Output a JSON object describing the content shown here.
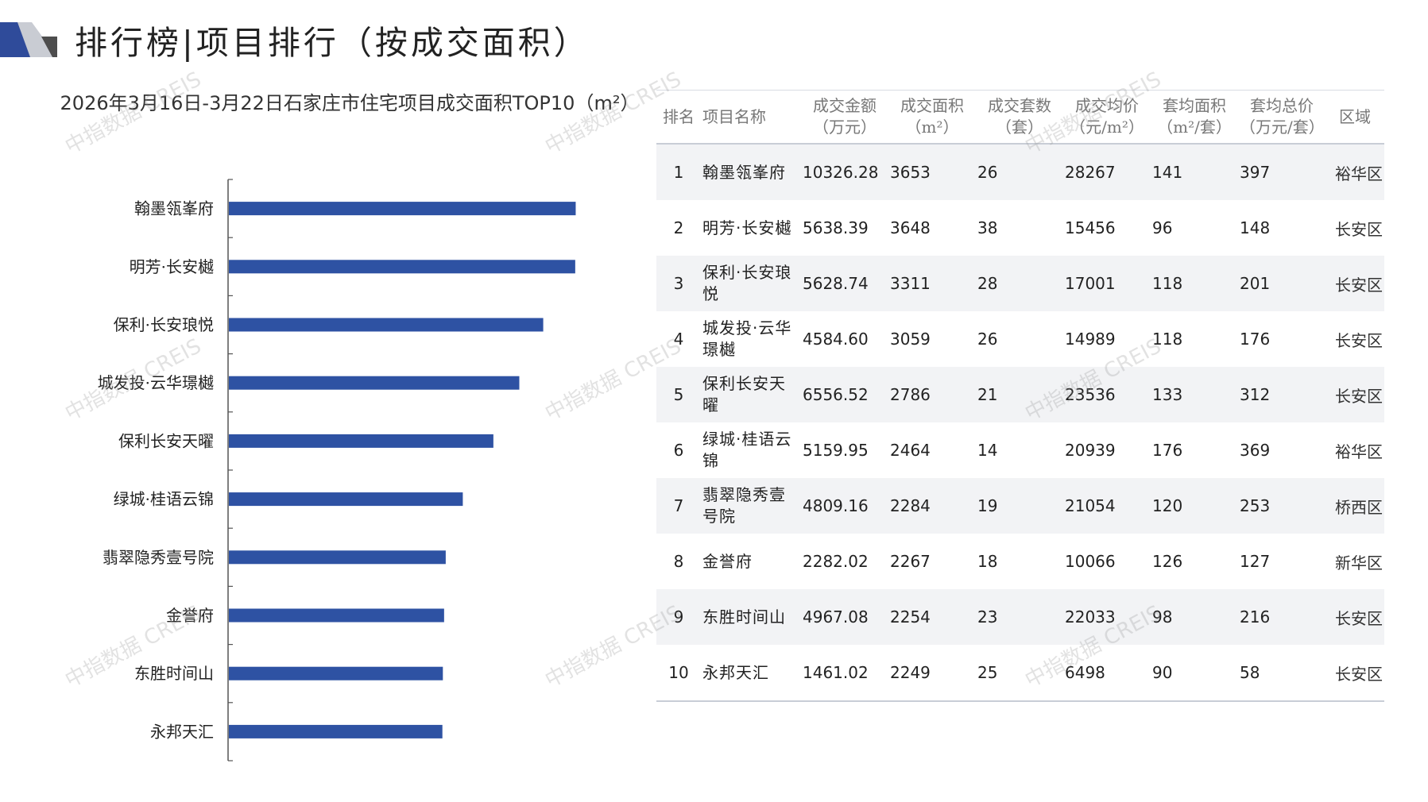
{
  "page": {
    "title": "排行榜|项目排行（按成交面积）",
    "watermark": "中指数据 CREIS",
    "colors": {
      "bar": "#2e52a3",
      "deco_dark": "#2f4b9a",
      "deco_light": "#c9ccd3",
      "axis": "#555555",
      "row_band": "#f2f3f5"
    }
  },
  "chart_data": {
    "type": "bar",
    "orientation": "horizontal",
    "title": "2026年3月16日-3月22日石家庄市住宅项目成交面积TOP10（m²）",
    "categories": [
      "翰墨瓴峯府",
      "明芳·长安樾",
      "保利·长安琅悦",
      "城发投·云华璟樾",
      "保利长安天曜",
      "绿城·桂语云锦",
      "翡翠隐秀壹号院",
      "金誉府",
      "东胜时间山",
      "永邦天汇"
    ],
    "values": [
      3653,
      3648,
      3311,
      3059,
      2786,
      2464,
      2284,
      2267,
      2254,
      2249
    ],
    "xlim": [
      0,
      3850
    ],
    "grid": false,
    "legend": "none",
    "color": "#2e52a3"
  },
  "table": {
    "headers": [
      {
        "line1": "排名",
        "line2": ""
      },
      {
        "line1": "项目名称",
        "line2": ""
      },
      {
        "line1": "成交金额",
        "line2": "（万元）"
      },
      {
        "line1": "成交面积",
        "line2": "（m²）"
      },
      {
        "line1": "成交套数",
        "line2": "（套）"
      },
      {
        "line1": "成交均价",
        "line2": "（元/m²）"
      },
      {
        "line1": "套均面积",
        "line2": "（m²/套）"
      },
      {
        "line1": "套均总价",
        "line2": "（万元/套）"
      },
      {
        "line1": "区域",
        "line2": ""
      }
    ],
    "rows": [
      {
        "rank": "1",
        "name": "翰墨瓴峯府",
        "amount": "10326.28",
        "area": "3653",
        "units": "26",
        "avg_price": "28267",
        "avg_area": "141",
        "avg_total": "397",
        "district": "裕华区"
      },
      {
        "rank": "2",
        "name": "明芳·长安樾",
        "amount": "5638.39",
        "area": "3648",
        "units": "38",
        "avg_price": "15456",
        "avg_area": "96",
        "avg_total": "148",
        "district": "长安区"
      },
      {
        "rank": "3",
        "name": "保利·长安琅悦",
        "amount": "5628.74",
        "area": "3311",
        "units": "28",
        "avg_price": "17001",
        "avg_area": "118",
        "avg_total": "201",
        "district": "长安区"
      },
      {
        "rank": "4",
        "name": "城发投·云华璟樾",
        "amount": "4584.60",
        "area": "3059",
        "units": "26",
        "avg_price": "14989",
        "avg_area": "118",
        "avg_total": "176",
        "district": "长安区"
      },
      {
        "rank": "5",
        "name": "保利长安天曜",
        "amount": "6556.52",
        "area": "2786",
        "units": "21",
        "avg_price": "23536",
        "avg_area": "133",
        "avg_total": "312",
        "district": "长安区"
      },
      {
        "rank": "6",
        "name": "绿城·桂语云锦",
        "amount": "5159.95",
        "area": "2464",
        "units": "14",
        "avg_price": "20939",
        "avg_area": "176",
        "avg_total": "369",
        "district": "裕华区"
      },
      {
        "rank": "7",
        "name": "翡翠隐秀壹号院",
        "amount": "4809.16",
        "area": "2284",
        "units": "19",
        "avg_price": "21054",
        "avg_area": "120",
        "avg_total": "253",
        "district": "桥西区"
      },
      {
        "rank": "8",
        "name": "金誉府",
        "amount": "2282.02",
        "area": "2267",
        "units": "18",
        "avg_price": "10066",
        "avg_area": "126",
        "avg_total": "127",
        "district": "新华区"
      },
      {
        "rank": "9",
        "name": "东胜时间山",
        "amount": "4967.08",
        "area": "2254",
        "units": "23",
        "avg_price": "22033",
        "avg_area": "98",
        "avg_total": "216",
        "district": "长安区"
      },
      {
        "rank": "10",
        "name": "永邦天汇",
        "amount": "1461.02",
        "area": "2249",
        "units": "25",
        "avg_price": "6498",
        "avg_area": "90",
        "avg_total": "58",
        "district": "长安区"
      }
    ]
  }
}
